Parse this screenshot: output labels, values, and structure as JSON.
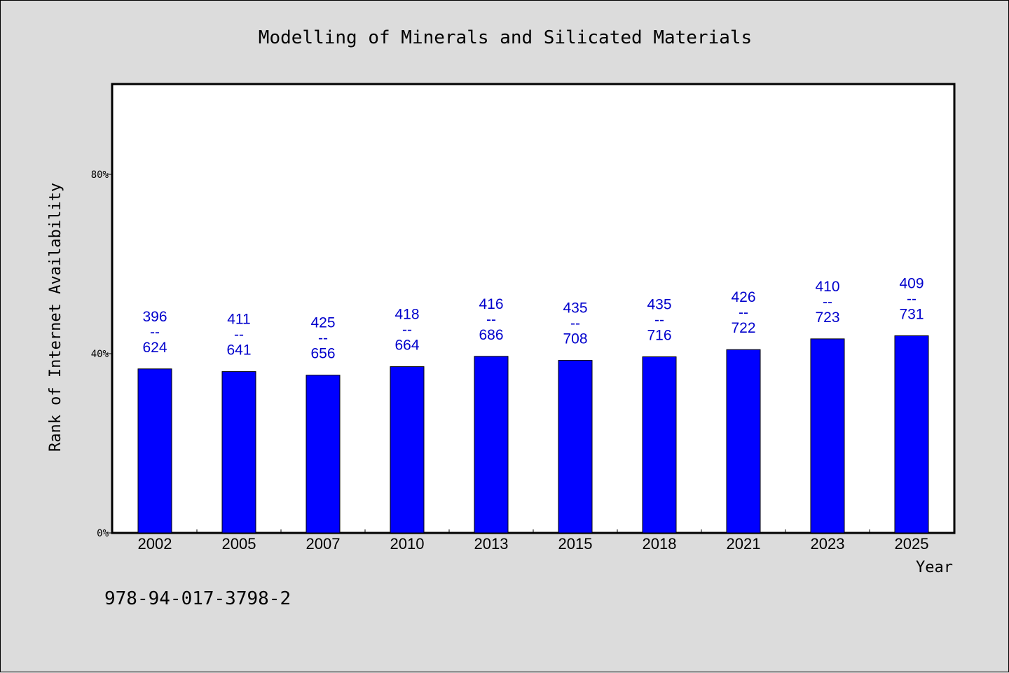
{
  "footer": {
    "code": "978-94-017-3798-2"
  },
  "chart_data": {
    "type": "bar",
    "title": "Modelling of Minerals and Silicated Materials",
    "xlabel": "Year",
    "ylabel": "Rank of Internet Availability",
    "ylim": [
      0,
      100
    ],
    "yticks": [
      0,
      40,
      80
    ],
    "ytick_labels": [
      "0%",
      "40%",
      "80%"
    ],
    "categories": [
      "2002",
      "2005",
      "2007",
      "2010",
      "2013",
      "2015",
      "2018",
      "2021",
      "2023",
      "2025"
    ],
    "values": [
      36.6,
      36.0,
      35.2,
      37.1,
      39.4,
      38.5,
      39.3,
      40.9,
      43.3,
      44.0
    ],
    "numerators": [
      "396",
      "411",
      "425",
      "418",
      "416",
      "435",
      "435",
      "426",
      "410",
      "409"
    ],
    "denominators": [
      "624",
      "641",
      "656",
      "664",
      "686",
      "708",
      "716",
      "722",
      "723",
      "731"
    ],
    "label_separator": "--",
    "grid": false,
    "legend": "none",
    "colors": {
      "bar": "#0000ff",
      "label": "#0000cc",
      "plot_bg": "#ffffff",
      "page_bg": "#dcdcdc"
    }
  }
}
